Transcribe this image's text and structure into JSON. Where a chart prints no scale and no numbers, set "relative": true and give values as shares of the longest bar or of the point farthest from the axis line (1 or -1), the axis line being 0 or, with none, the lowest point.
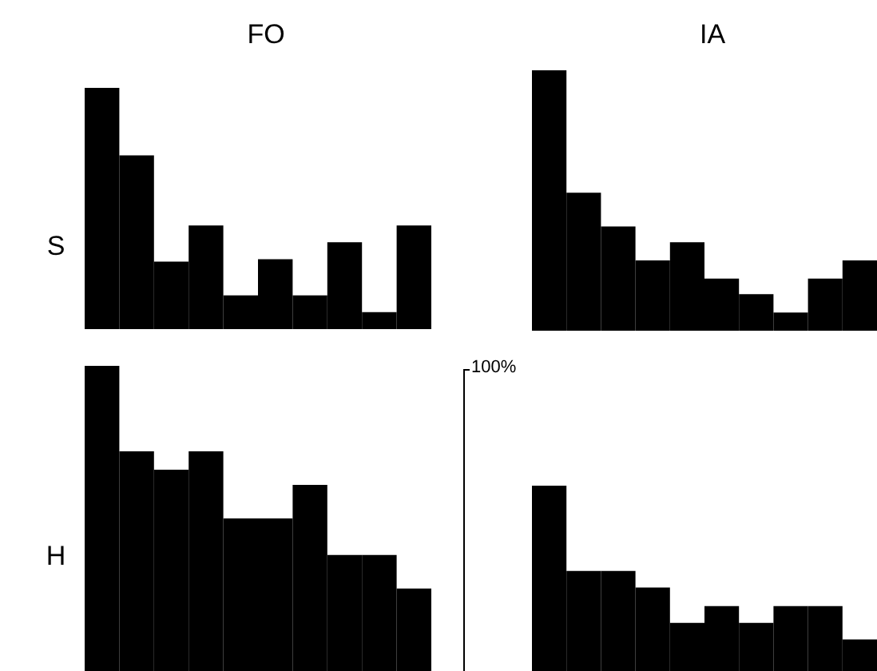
{
  "chart_data": [
    {
      "type": "bar",
      "title": "FO",
      "ylabel": "S",
      "relative": true,
      "tick_labels": false,
      "categories": [
        null,
        null,
        null,
        null,
        null,
        null,
        null,
        null,
        null,
        null
      ],
      "series": [
        {
          "color": "#000000",
          "values": [
            1,
            0.72,
            0.28,
            0.43,
            0.14,
            0.29,
            0.14,
            0.36,
            0.07,
            0.43
          ]
        }
      ]
    },
    {
      "type": "bar",
      "title": "IA",
      "relative": true,
      "tick_labels": false,
      "categories": [
        null,
        null,
        null,
        null,
        null,
        null,
        null,
        null,
        null,
        null
      ],
      "series": [
        {
          "color": "#000000",
          "values": [
            1,
            0.53,
            0.4,
            0.27,
            0.34,
            0.2,
            0.14,
            0.07,
            0.2,
            0.27
          ]
        }
      ]
    },
    {
      "type": "bar",
      "ylabel": "H",
      "relative": true,
      "tick_labels": false,
      "categories": [
        null,
        null,
        null,
        null,
        null,
        null,
        null,
        null,
        null,
        null
      ],
      "series": [
        {
          "color": "#000000",
          "values": [
            1,
            0.72,
            0.66,
            0.72,
            0.5,
            0.5,
            0.61,
            0.38,
            0.38,
            0.27
          ]
        }
      ]
    },
    {
      "type": "bar",
      "annotations": [
        "100%"
      ],
      "relative": true,
      "tick_labels": false,
      "categories": [
        null,
        null,
        null,
        null,
        null,
        null,
        null,
        null,
        null,
        null
      ],
      "series": [
        {
          "color": "#000000",
          "values": [
            1,
            0.54,
            0.54,
            0.45,
            0.26,
            0.35,
            0.26,
            0.35,
            0.35,
            0.17
          ]
        }
      ]
    }
  ]
}
